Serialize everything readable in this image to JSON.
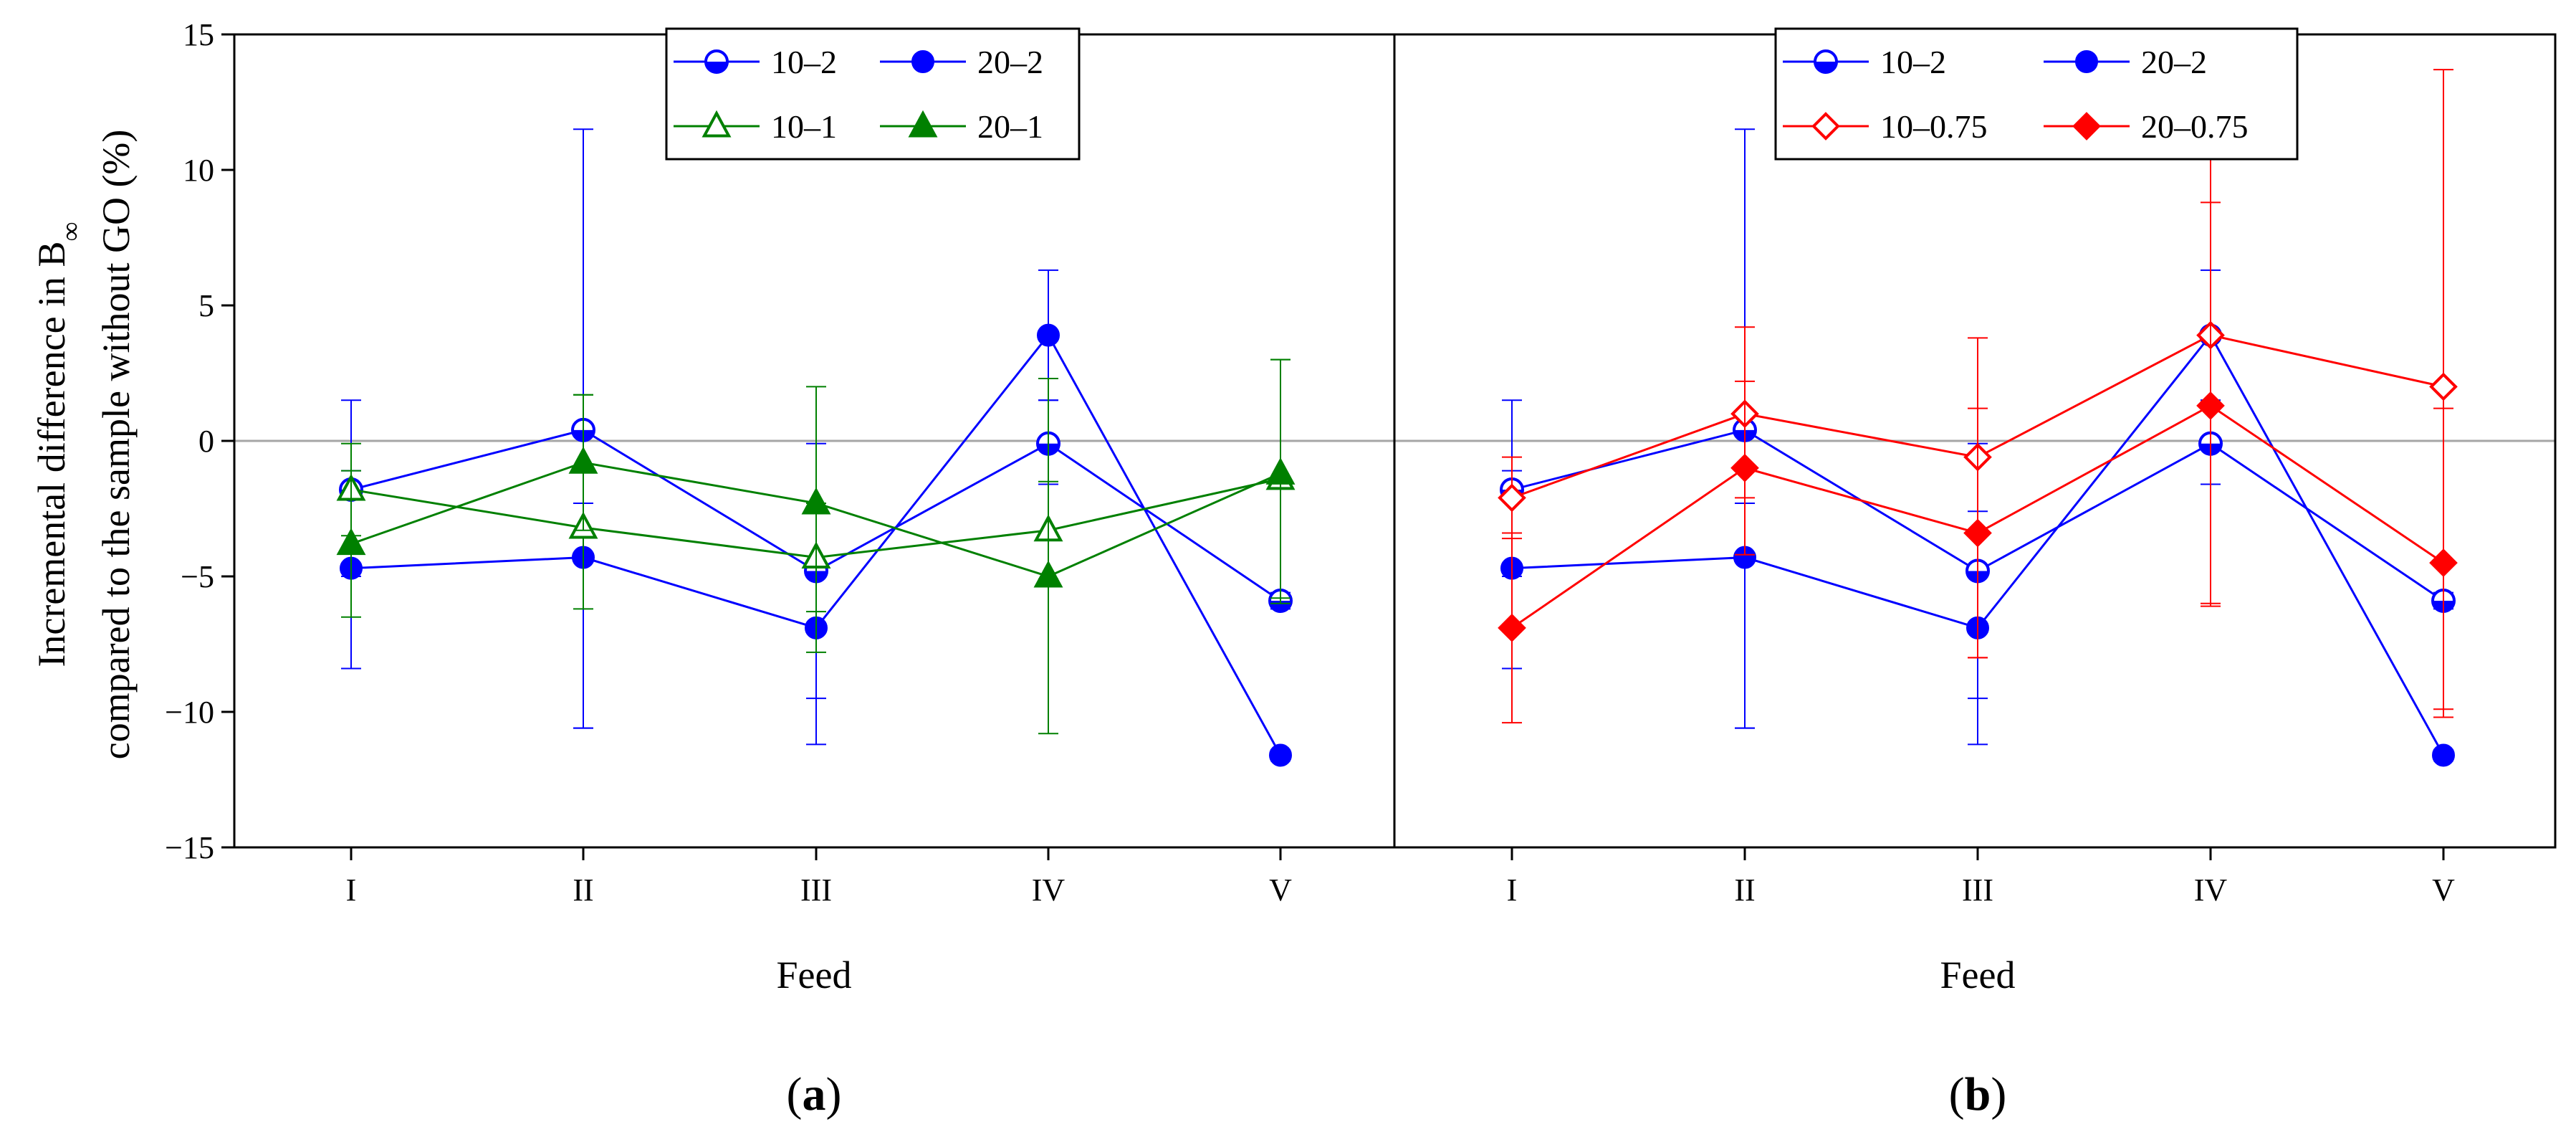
{
  "chart_data": [
    {
      "type": "line",
      "panel_label": "a",
      "xlabel": "Feed",
      "ylabel_lines": [
        "Incremental difference in B∞",
        "compared to the sample without GO (%)"
      ],
      "categories": [
        "I",
        "II",
        "III",
        "IV",
        "V"
      ],
      "ylim": [
        -15,
        15
      ],
      "yticks": [
        -15,
        -10,
        -5,
        0,
        5,
        10,
        15
      ],
      "grid": false,
      "reference_line": 0,
      "legend_position": "top-center",
      "series": [
        {
          "name": "10–2",
          "color": "#0000ff",
          "marker": "half-circle",
          "values": [
            -1.8,
            0.4,
            -4.8,
            -0.1,
            -5.9
          ],
          "err_plus": [
            3.3,
            11.1,
            4.7,
            1.6,
            0.3
          ],
          "err_minus": [
            3.2,
            11.0,
            4.7,
            1.5,
            0.3
          ]
        },
        {
          "name": "20–2",
          "color": "#0000ff",
          "marker": "filled-circle",
          "values": [
            -4.7,
            -4.3,
            -6.9,
            3.9,
            -11.6
          ],
          "err_plus": [
            3.6,
            2.0,
            4.3,
            2.4,
            0.2
          ],
          "err_minus": [
            3.7,
            6.3,
            4.3,
            2.4,
            0.2
          ]
        },
        {
          "name": "10–1",
          "color": "#008000",
          "marker": "open-triangle",
          "values": [
            -1.8,
            -3.2,
            -4.3,
            -3.3,
            -1.4
          ],
          "err_plus": [
            1.7,
            4.9,
            2.0,
            1.8,
            4.4
          ],
          "err_minus": [
            1.7,
            3.0,
            2.0,
            1.8,
            4.4
          ]
        },
        {
          "name": "20–1",
          "color": "#008000",
          "marker": "filled-triangle",
          "values": [
            -3.8,
            -0.8,
            -2.3,
            -5.0,
            -1.2
          ],
          "err_plus": [
            2.7,
            2.5,
            4.3,
            7.3,
            4.2
          ],
          "err_minus": [
            2.7,
            2.5,
            5.5,
            5.8,
            4.8
          ]
        }
      ]
    },
    {
      "type": "line",
      "panel_label": "b",
      "xlabel": "Feed",
      "categories": [
        "I",
        "II",
        "III",
        "IV",
        "V"
      ],
      "ylim": [
        -15,
        15
      ],
      "yticks": [
        -15,
        -10,
        -5,
        0,
        5,
        10,
        15
      ],
      "grid": false,
      "reference_line": 0,
      "legend_position": "top-right",
      "series": [
        {
          "name": "10–2",
          "color": "#0000ff",
          "marker": "half-circle",
          "values": [
            -1.8,
            0.4,
            -4.8,
            -0.1,
            -5.9
          ],
          "err_plus": [
            3.3,
            11.1,
            4.7,
            1.6,
            0.3
          ],
          "err_minus": [
            3.2,
            11.0,
            4.7,
            1.5,
            0.3
          ]
        },
        {
          "name": "20–2",
          "color": "#0000ff",
          "marker": "filled-circle",
          "values": [
            -4.7,
            -4.3,
            -6.9,
            3.9,
            -11.6
          ],
          "err_plus": [
            3.6,
            2.0,
            4.3,
            2.4,
            0.2
          ],
          "err_minus": [
            3.7,
            6.3,
            4.3,
            2.4,
            0.2
          ]
        },
        {
          "name": "10–0.75",
          "color": "#ff0000",
          "marker": "open-diamond",
          "values": [
            -2.1,
            1.0,
            -0.6,
            3.9,
            2.0
          ],
          "err_plus": [
            1.5,
            3.2,
            4.4,
            7.3,
            11.7
          ],
          "err_minus": [
            1.5,
            3.1,
            7.4,
            9.9,
            11.9
          ]
        },
        {
          "name": "20–0.75",
          "color": "#ff0000",
          "marker": "filled-diamond",
          "values": [
            -6.9,
            -1.0,
            -3.4,
            1.3,
            -4.5
          ],
          "err_plus": [
            3.5,
            3.2,
            4.6,
            7.5,
            5.7
          ],
          "err_minus": [
            3.5,
            3.2,
            4.6,
            7.4,
            5.7
          ]
        }
      ]
    }
  ]
}
